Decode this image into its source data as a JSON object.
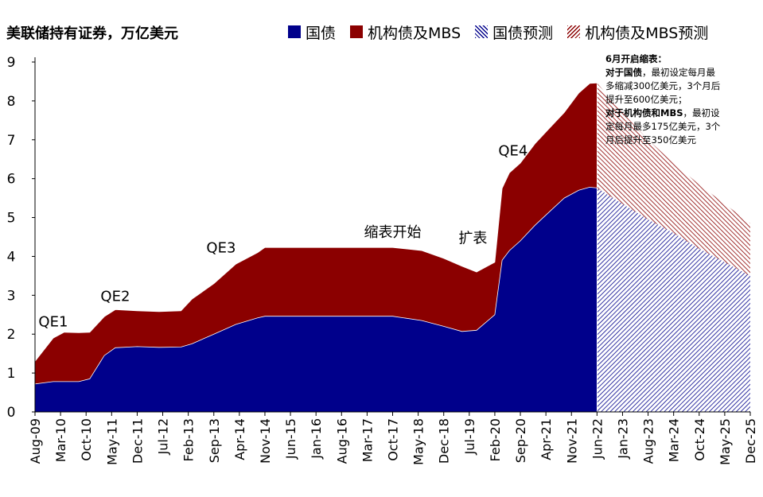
{
  "chart_data": {
    "type": "area",
    "title": "美联储持有证券，万亿美元",
    "ylim": [
      0,
      9
    ],
    "yticks": [
      "0",
      "1",
      "2",
      "3",
      "4",
      "5",
      "6",
      "7",
      "8",
      "9"
    ],
    "xticks": [
      "Aug-09",
      "Mar-10",
      "Oct-10",
      "May-11",
      "Dec-11",
      "Jul-12",
      "Feb-13",
      "Sep-13",
      "Apr-14",
      "Nov-14",
      "Jun-15",
      "Jan-16",
      "Aug-16",
      "Mar-17",
      "Oct-17",
      "May-18",
      "Dec-18",
      "Jul-19",
      "Feb-20",
      "Sep-20",
      "Apr-21",
      "Nov-21",
      "Jun-22",
      "Jan-23",
      "Aug-23",
      "Mar-24",
      "Oct-24",
      "May-25",
      "Dec-25"
    ],
    "legend": [
      {
        "name": "国债",
        "color": "#00008B",
        "style": "solid"
      },
      {
        "name": "机构债及MBS",
        "color": "#8B0000",
        "style": "solid"
      },
      {
        "name": "国债预测",
        "color": "#00008B",
        "style": "hatch"
      },
      {
        "name": "机构债及MBS预测",
        "color": "#8B0000",
        "style": "hatch"
      }
    ],
    "x_dates": [
      "Aug-09",
      "Jan-10",
      "Apr-10",
      "Aug-10",
      "Nov-10",
      "Mar-11",
      "Jun-11",
      "Dec-11",
      "Jun-12",
      "Dec-12",
      "Mar-13",
      "Sep-13",
      "Mar-14",
      "Sep-14",
      "Nov-14",
      "Jun-15",
      "Jan-16",
      "Oct-17",
      "Jun-18",
      "Dec-18",
      "May-19",
      "Sep-19",
      "Feb-20",
      "Apr-20",
      "Jun-20",
      "Sep-20",
      "Jan-21",
      "May-21",
      "Sep-21",
      "Jan-22",
      "Apr-22",
      "Jun-22"
    ],
    "series": [
      {
        "name": "国债",
        "values": [
          0.72,
          0.78,
          0.78,
          0.78,
          0.85,
          1.45,
          1.65,
          1.68,
          1.66,
          1.67,
          1.75,
          2.0,
          2.25,
          2.42,
          2.46,
          2.46,
          2.46,
          2.46,
          2.35,
          2.2,
          2.07,
          2.1,
          2.5,
          3.9,
          4.15,
          4.4,
          4.8,
          5.15,
          5.5,
          5.7,
          5.78,
          5.76
        ]
      },
      {
        "name": "机构债及MBS",
        "values": [
          1.3,
          1.9,
          2.05,
          2.04,
          2.05,
          2.45,
          2.63,
          2.6,
          2.58,
          2.6,
          2.9,
          3.3,
          3.8,
          4.1,
          4.23,
          4.23,
          4.23,
          4.23,
          4.15,
          3.95,
          3.75,
          3.6,
          3.85,
          5.75,
          6.15,
          6.4,
          6.9,
          7.3,
          7.7,
          8.2,
          8.45,
          8.46
        ]
      }
    ],
    "forecast": {
      "x_dates": [
        "Jun-22",
        "Jan-23",
        "Aug-23",
        "Mar-24",
        "Oct-24",
        "May-25",
        "Dec-25"
      ],
      "series": [
        {
          "name": "国债预测",
          "values": [
            5.76,
            5.35,
            4.95,
            4.6,
            4.2,
            3.85,
            3.5
          ]
        },
        {
          "name": "机构债及MBS预测",
          "values": [
            8.46,
            7.7,
            7.0,
            6.4,
            5.85,
            5.35,
            4.85
          ]
        }
      ]
    },
    "annotations": [
      {
        "text": "QE1",
        "date": "Jan-10",
        "y": 2.2
      },
      {
        "text": "QE2",
        "date": "Jun-11",
        "y": 2.85
      },
      {
        "text": "QE3",
        "date": "Nov-13",
        "y": 4.1
      },
      {
        "text": "缩表开始",
        "date": "Oct-17",
        "y": 4.5
      },
      {
        "text": "扩表",
        "date": "Aug-19",
        "y": 4.35
      },
      {
        "text": "QE4",
        "date": "Jul-20",
        "y": 6.6
      }
    ],
    "note": {
      "header": "6月开启缩表：",
      "lines": [
        {
          "bold": "对于国债",
          "rest": "，最初设定每月最"
        },
        {
          "bold": "",
          "rest": "多缩减300亿美元，3个月后"
        },
        {
          "bold": "",
          "rest": "提升至600亿美元；"
        },
        {
          "bold": "对于机构债和MBS",
          "rest": "，最初设"
        },
        {
          "bold": "",
          "rest": "定每月最多175亿美元，3个"
        },
        {
          "bold": "",
          "rest": "月后提升至350亿美元"
        }
      ]
    }
  }
}
